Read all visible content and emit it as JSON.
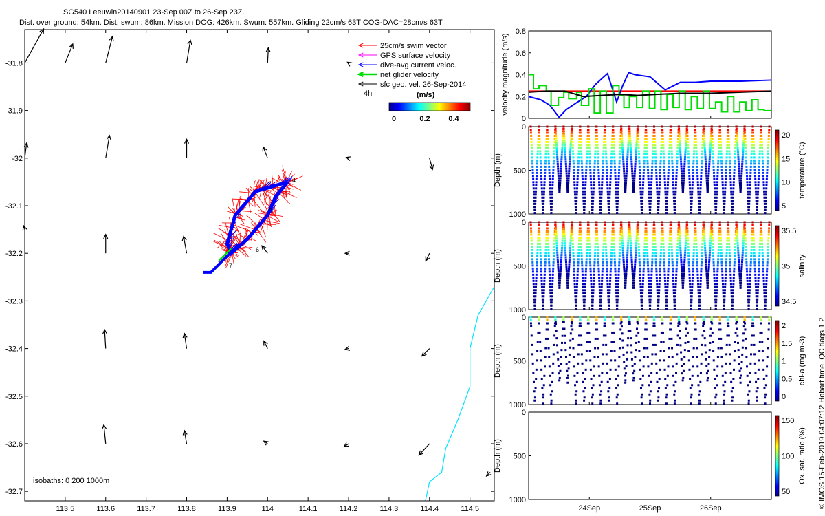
{
  "title": {
    "line1": "SG540 Leeuwin20140901 23-Sep 00Z to 26-Sep 23Z.",
    "line2": "Dist. over ground: 54km. Dist. swum: 86km. Mission DOG: 426km. Swum: 557km. Gliding 22cm/s 63T COG-DAC=28cm/s 63T"
  },
  "footer_text": "© IMOS 15-Feb-2019 04:07:12 Hobart time. QC flags 1  2",
  "map": {
    "x_ticks": [
      "113.5",
      "113.6",
      "113.7",
      "113.8",
      "113.9",
      "114",
      "114.1",
      "114.2",
      "114.3",
      "114.4",
      "114.5"
    ],
    "y_ticks": [
      "-31.8",
      "-31.9",
      "-32",
      "-32.1",
      "-32.2",
      "-32.3",
      "-32.4",
      "-32.5",
      "-32.6",
      "-32.7"
    ],
    "isobath_label": "isobaths: 0    200   1000m",
    "legend": [
      {
        "label": "25cm/s swim vector",
        "color": "#ff0000"
      },
      {
        "label": "GPS surface velocity",
        "color": "#ff00ff"
      },
      {
        "label": "dive-avg current veloc.",
        "color": "#0000ff"
      },
      {
        "label": "net glider velocity",
        "color": "#00dd00"
      },
      {
        "label": "sfc geo. vel. 26-Sep-2014",
        "color": "#000000"
      }
    ],
    "label_4h": "4h",
    "colorbar": {
      "title": "(m/s)",
      "ticks": [
        "0",
        "0.2",
        "0.4"
      ]
    },
    "track_labels": [
      "4",
      "5",
      "6",
      "7"
    ]
  },
  "panels": {
    "velocity": {
      "ylabel": "velocity magnitude (m/s)",
      "yticks": [
        "0",
        "0.2",
        "0.4",
        "0.6",
        "0.8"
      ]
    },
    "temperature": {
      "ylabel": "Depth (m)",
      "yticks": [
        "0",
        "500",
        "1000"
      ],
      "cbar_label": "temperature (°C)",
      "cbar_ticks": [
        "20",
        "15",
        "10",
        "5"
      ]
    },
    "salinity": {
      "ylabel": "Depth (m)",
      "yticks": [
        "0",
        "500",
        "1000"
      ],
      "cbar_label": "salinity",
      "cbar_ticks": [
        "35.5",
        "35",
        "34.5"
      ]
    },
    "chla": {
      "ylabel": "Depth (m)",
      "yticks": [
        "0",
        "500",
        "1000"
      ],
      "cbar_label": "chl-a (mg m-3)",
      "cbar_ticks": [
        "2",
        "1.5",
        "1",
        "0.5",
        "0"
      ]
    },
    "oxygen": {
      "ylabel": "Depth (m)",
      "yticks": [
        "0",
        "500",
        "1000"
      ],
      "cbar_label": "Ox. sat. ratio (%)",
      "cbar_ticks": [
        "150",
        "100",
        "50"
      ]
    },
    "x_ticks": [
      "24Sep",
      "25Sep",
      "26Sep"
    ]
  },
  "chart_data": [
    {
      "type": "scatter",
      "title": "SG540 Leeuwin20140901 23-Sep 00Z to 26-Sep 23Z.",
      "xlim": [
        113.4,
        114.56
      ],
      "ylim": [
        -32.72,
        -31.73
      ],
      "ticks_x": [
        113.5,
        113.6,
        113.7,
        113.8,
        113.9,
        114.0,
        114.1,
        114.2,
        114.3,
        114.4,
        114.5
      ],
      "ticks_y": [
        -31.8,
        -31.9,
        -32.0,
        -32.1,
        -32.2,
        -32.3,
        -32.4,
        -32.5,
        -32.6,
        -32.7
      ],
      "sfc_geo_vectors": [
        {
          "lon": 113.4,
          "lat": -31.8,
          "u": 0.05,
          "v": 0.09
        },
        {
          "lon": 113.5,
          "lat": -31.8,
          "u": 0.02,
          "v": 0.05
        },
        {
          "lon": 113.6,
          "lat": -31.8,
          "u": 0.018,
          "v": 0.07
        },
        {
          "lon": 113.8,
          "lat": -31.8,
          "u": 0.01,
          "v": 0.06
        },
        {
          "lon": 114.0,
          "lat": -31.8,
          "u": 0.002,
          "v": 0.04
        },
        {
          "lon": 114.2,
          "lat": -31.8,
          "u": -0.003,
          "v": 0.002
        },
        {
          "lon": 113.4,
          "lat": -32.0,
          "u": 0.005,
          "v": 0.04
        },
        {
          "lon": 113.6,
          "lat": -32.0,
          "u": 0.01,
          "v": 0.06
        },
        {
          "lon": 113.8,
          "lat": -32.0,
          "u": 0.0,
          "v": 0.05
        },
        {
          "lon": 114.0,
          "lat": -32.0,
          "u": -0.012,
          "v": 0.03
        },
        {
          "lon": 114.2,
          "lat": -32.0,
          "u": -0.006,
          "v": 0.002
        },
        {
          "lon": 114.4,
          "lat": -32.0,
          "u": 0.008,
          "v": -0.03
        },
        {
          "lon": 113.4,
          "lat": -32.15,
          "u": -0.003,
          "v": 0.01
        },
        {
          "lon": 113.6,
          "lat": -32.2,
          "u": 0.0,
          "v": 0.05
        },
        {
          "lon": 113.8,
          "lat": -32.2,
          "u": -0.008,
          "v": 0.045
        },
        {
          "lon": 114.0,
          "lat": -32.2,
          "u": -0.015,
          "v": 0.02
        },
        {
          "lon": 114.2,
          "lat": -32.2,
          "u": -0.009,
          "v": 0.0
        },
        {
          "lon": 114.4,
          "lat": -32.2,
          "u": -0.01,
          "v": -0.02
        },
        {
          "lon": 113.6,
          "lat": -32.4,
          "u": -0.003,
          "v": 0.05
        },
        {
          "lon": 113.8,
          "lat": -32.4,
          "u": -0.006,
          "v": 0.04
        },
        {
          "lon": 114.0,
          "lat": -32.4,
          "u": -0.01,
          "v": 0.02
        },
        {
          "lon": 114.2,
          "lat": -32.4,
          "u": -0.009,
          "v": -0.002
        },
        {
          "lon": 114.4,
          "lat": -32.4,
          "u": -0.02,
          "v": -0.02
        },
        {
          "lon": 113.6,
          "lat": -32.6,
          "u": -0.005,
          "v": 0.05
        },
        {
          "lon": 113.8,
          "lat": -32.6,
          "u": -0.006,
          "v": 0.035
        },
        {
          "lon": 114.0,
          "lat": -32.6,
          "u": -0.01,
          "v": 0.007
        },
        {
          "lon": 114.2,
          "lat": -32.6,
          "u": -0.012,
          "v": -0.008
        },
        {
          "lon": 114.4,
          "lat": -32.6,
          "u": -0.028,
          "v": -0.03
        },
        {
          "lon": 114.55,
          "lat": -32.66,
          "u": -0.01,
          "v": -0.01
        }
      ],
      "dive_avg_current_track": [
        [
          114.05,
          -32.05
        ],
        [
          113.97,
          -32.07
        ],
        [
          113.92,
          -32.12
        ],
        [
          113.9,
          -32.18
        ],
        [
          113.91,
          -32.2
        ],
        [
          113.95,
          -32.17
        ],
        [
          114.0,
          -32.12
        ],
        [
          114.02,
          -32.08
        ],
        [
          114.05,
          -32.05
        ]
      ],
      "glider_tail": [
        [
          113.93,
          -32.18
        ],
        [
          113.86,
          -32.24
        ],
        [
          113.84,
          -32.24
        ]
      ],
      "coastline": [
        [
          114.56,
          -32.27
        ],
        [
          114.52,
          -32.33
        ],
        [
          114.5,
          -32.4
        ],
        [
          114.5,
          -32.48
        ],
        [
          114.47,
          -32.55
        ],
        [
          114.44,
          -32.61
        ],
        [
          114.43,
          -32.66
        ],
        [
          114.4,
          -32.68
        ],
        [
          114.39,
          -32.72
        ]
      ]
    },
    {
      "type": "line",
      "title": "",
      "ylabel": "velocity magnitude (m/s)",
      "xlim": [
        23.0,
        27.0
      ],
      "ylim": [
        0,
        0.8
      ],
      "x_tick_days": [
        24,
        25,
        26
      ],
      "series": [
        {
          "color": "#ff0000",
          "x": [
            23.0,
            27.0
          ],
          "y": [
            0.25,
            0.25
          ]
        },
        {
          "color": "#0000ff",
          "x": [
            23.0,
            23.2,
            23.35,
            23.5,
            23.62,
            23.78,
            23.95,
            24.1,
            24.3,
            24.45,
            24.55,
            24.65,
            24.75,
            25.0,
            25.25,
            25.5,
            25.75,
            26.0,
            26.5,
            27.0
          ],
          "y": [
            0.2,
            0.17,
            0.12,
            0.01,
            0.08,
            0.14,
            0.2,
            0.31,
            0.41,
            0.15,
            0.3,
            0.42,
            0.4,
            0.38,
            0.26,
            0.33,
            0.33,
            0.34,
            0.34,
            0.35
          ]
        },
        {
          "color": "#00dd00",
          "x": [
            23.0,
            23.08,
            23.08,
            23.17,
            23.17,
            23.29,
            23.29,
            23.37,
            23.37,
            23.49,
            23.49,
            23.58,
            23.58,
            23.66,
            23.66,
            23.79,
            23.79,
            23.87,
            23.87,
            23.99,
            23.99,
            24.08,
            24.08,
            24.18,
            24.18,
            24.28,
            24.28,
            24.39,
            24.39,
            24.49,
            24.49,
            24.57,
            24.57,
            24.66,
            24.66,
            24.78,
            24.78,
            24.88,
            24.88,
            24.99,
            24.99,
            25.08,
            25.08,
            25.18,
            25.18,
            25.28,
            25.28,
            25.38,
            25.38,
            25.48,
            25.48,
            25.58,
            25.58,
            25.68,
            25.68,
            25.78,
            25.78,
            25.88,
            25.88,
            25.98,
            25.98,
            26.08,
            26.08,
            26.18,
            26.18,
            26.28,
            26.28,
            26.38,
            26.38,
            26.48,
            26.48,
            26.58,
            26.58,
            26.68,
            26.68,
            26.78,
            26.78,
            26.88,
            26.88,
            27.0
          ],
          "y": [
            0.4,
            0.4,
            0.27,
            0.27,
            0.3,
            0.3,
            0.25,
            0.25,
            0.12,
            0.12,
            0.19,
            0.19,
            0.24,
            0.24,
            0.18,
            0.18,
            0.24,
            0.24,
            0.12,
            0.12,
            0.27,
            0.27,
            0.05,
            0.05,
            0.25,
            0.25,
            0.05,
            0.05,
            0.3,
            0.3,
            0.21,
            0.21,
            0.1,
            0.1,
            0.2,
            0.2,
            0.1,
            0.1,
            0.25,
            0.25,
            0.09,
            0.09,
            0.25,
            0.25,
            0.08,
            0.08,
            0.22,
            0.22,
            0.1,
            0.1,
            0.25,
            0.25,
            0.08,
            0.08,
            0.2,
            0.2,
            0.09,
            0.09,
            0.25,
            0.25,
            0.09,
            0.09,
            0.15,
            0.15,
            0.06,
            0.06,
            0.2,
            0.2,
            0.06,
            0.06,
            0.15,
            0.15,
            0.07,
            0.07,
            0.17,
            0.17,
            0.08,
            0.08,
            0.07,
            0.07
          ]
        },
        {
          "color": "#000000",
          "x": [
            23.0,
            23.3,
            23.6,
            23.9,
            24.2,
            24.5,
            24.8,
            25.1,
            25.5,
            26.0,
            26.5,
            27.0
          ],
          "y": [
            0.24,
            0.25,
            0.25,
            0.2,
            0.21,
            0.22,
            0.21,
            0.22,
            0.23,
            0.23,
            0.24,
            0.25
          ]
        }
      ]
    },
    {
      "type": "scatter",
      "title": "",
      "ylabel": "Depth (m)",
      "colorbar_label": "temperature (°C)",
      "ylim": [
        1000,
        0
      ],
      "profile_cycles": 29,
      "surface_value": 21,
      "deep_value": 4
    },
    {
      "type": "scatter",
      "title": "",
      "ylabel": "Depth (m)",
      "colorbar_label": "salinity",
      "ylim": [
        1000,
        0
      ],
      "profile_cycles": 29,
      "surface_value": 35.6,
      "deep_value": 34.4
    },
    {
      "type": "scatter",
      "title": "",
      "ylabel": "Depth (m)",
      "colorbar_label": "chl-a (mg m-3)",
      "ylim": [
        1000,
        0
      ],
      "profile_cycles": 29,
      "surface_value": 1.0,
      "deep_value": 0
    },
    {
      "type": "scatter",
      "title": "",
      "ylabel": "Depth (m)",
      "colorbar_label": "Ox. sat. ratio (%)",
      "ylim": [
        1000,
        0
      ],
      "profile_cycles": 0
    }
  ]
}
